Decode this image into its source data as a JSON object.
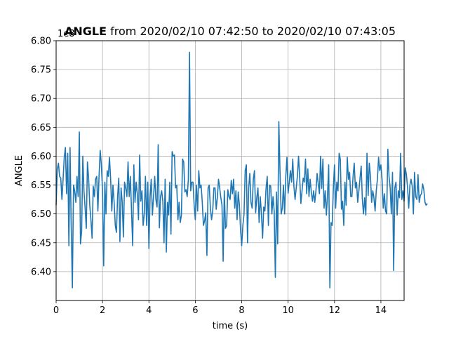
{
  "chart_data": {
    "type": "line",
    "title": {
      "bold": "ANGLE",
      "rest": " from 2020/02/10 07:42:50 to 2020/02/10 07:43:05"
    },
    "xlabel": "time (s)",
    "ylabel": "ANGLE",
    "offset_text": "1e8",
    "xlim": [
      0,
      15
    ],
    "ylim": [
      6.35,
      6.8
    ],
    "xticks": [
      0,
      2,
      4,
      6,
      8,
      10,
      12,
      14
    ],
    "xtick_labels": [
      "0",
      "2",
      "4",
      "6",
      "8",
      "10",
      "12",
      "14"
    ],
    "yticks": [
      6.4,
      6.45,
      6.5,
      6.55,
      6.6,
      6.65,
      6.7,
      6.75,
      6.8
    ],
    "ytick_labels": [
      "6.40",
      "6.45",
      "6.50",
      "6.55",
      "6.60",
      "6.65",
      "6.70",
      "6.75",
      "6.80"
    ],
    "grid": true,
    "series": [
      {
        "color": "#1f77b4",
        "x_start": 0,
        "x_step": 0.05,
        "values": [
          6.515,
          6.578,
          6.588,
          6.565,
          6.562,
          6.525,
          6.56,
          6.598,
          6.615,
          6.535,
          6.605,
          6.445,
          6.615,
          6.48,
          6.372,
          6.55,
          6.54,
          6.52,
          6.565,
          6.53,
          6.642,
          6.448,
          6.47,
          6.6,
          6.54,
          6.51,
          6.475,
          6.59,
          6.562,
          6.515,
          6.49,
          6.458,
          6.548,
          6.53,
          6.56,
          6.565,
          6.505,
          6.565,
          6.61,
          6.585,
          6.54,
          6.41,
          6.555,
          6.5,
          6.575,
          6.565,
          6.598,
          6.56,
          6.505,
          6.55,
          6.52,
          6.48,
          6.468,
          6.53,
          6.562,
          6.452,
          6.545,
          6.52,
          6.46,
          6.555,
          6.545,
          6.53,
          6.59,
          6.53,
          6.565,
          6.505,
          6.445,
          6.585,
          6.52,
          6.555,
          6.535,
          6.49,
          6.602,
          6.522,
          6.54,
          6.48,
          6.5,
          6.565,
          6.48,
          6.555,
          6.44,
          6.53,
          6.56,
          6.498,
          6.53,
          6.565,
          6.525,
          6.512,
          6.62,
          6.476,
          6.53,
          6.54,
          6.522,
          6.45,
          6.56,
          6.434,
          6.52,
          6.498,
          6.555,
          6.465,
          6.608,
          6.6,
          6.602,
          6.545,
          6.55,
          6.49,
          6.52,
          6.485,
          6.498,
          6.595,
          6.59,
          6.538,
          6.542,
          6.53,
          6.56,
          6.78,
          6.54,
          6.555,
          6.555,
          6.515,
          6.49,
          6.55,
          6.505,
          6.575,
          6.545,
          6.55,
          6.52,
          6.48,
          6.488,
          6.502,
          6.428,
          6.545,
          6.55,
          6.51,
          6.49,
          6.505,
          6.545,
          6.545,
          6.508,
          6.528,
          6.56,
          6.545,
          6.528,
          6.515,
          6.418,
          6.54,
          6.475,
          6.48,
          6.542,
          6.53,
          6.525,
          6.558,
          6.535,
          6.56,
          6.51,
          6.54,
          6.49,
          6.538,
          6.515,
          6.472,
          6.445,
          6.48,
          6.5,
          6.575,
          6.585,
          6.45,
          6.545,
          6.57,
          6.52,
          6.51,
          6.56,
          6.575,
          6.502,
          6.528,
          6.545,
          6.485,
          6.53,
          6.5,
          6.458,
          6.512,
          6.505,
          6.545,
          6.565,
          6.48,
          6.55,
          6.548,
          6.5,
          6.53,
          6.505,
          6.39,
          6.538,
          6.448,
          6.66,
          6.575,
          6.5,
          6.51,
          6.55,
          6.5,
          6.565,
          6.598,
          6.536,
          6.555,
          6.575,
          6.555,
          6.595,
          6.548,
          6.525,
          6.545,
          6.565,
          6.6,
          6.562,
          6.518,
          6.54,
          6.562,
          6.555,
          6.595,
          6.535,
          6.578,
          6.53,
          6.56,
          6.538,
          6.522,
          6.54,
          6.52,
          6.54,
          6.57,
          6.552,
          6.535,
          6.6,
          6.544,
          6.595,
          6.51,
          6.54,
          6.498,
          6.535,
          6.585,
          6.372,
          6.485,
          6.48,
          6.545,
          6.585,
          6.51,
          6.555,
          6.54,
          6.605,
          6.595,
          6.508,
          6.522,
          6.48,
          6.555,
          6.515,
          6.598,
          6.56,
          6.572,
          6.53,
          6.53,
          6.565,
          6.588,
          6.545,
          6.555,
          6.52,
          6.54,
          6.562,
          6.583,
          6.525,
          6.5,
          6.528,
          6.498,
          6.605,
          6.532,
          6.588,
          6.565,
          6.52,
          6.54,
          6.528,
          6.505,
          6.54,
          6.56,
          6.598,
          6.575,
          6.585,
          6.56,
          6.51,
          6.535,
          6.505,
          6.5,
          6.612,
          6.565,
          6.545,
          6.5,
          6.572,
          6.402,
          6.545,
          6.555,
          6.498,
          6.54,
          6.528,
          6.605,
          6.525,
          6.54,
          6.522,
          6.58,
          6.568,
          6.545,
          6.51,
          6.55,
          6.56,
          6.548,
          6.5,
          6.572,
          6.53,
          6.525,
          6.568,
          6.52,
          6.532,
          6.535,
          6.552,
          6.542,
          6.52,
          6.515,
          6.518
        ]
      }
    ]
  }
}
